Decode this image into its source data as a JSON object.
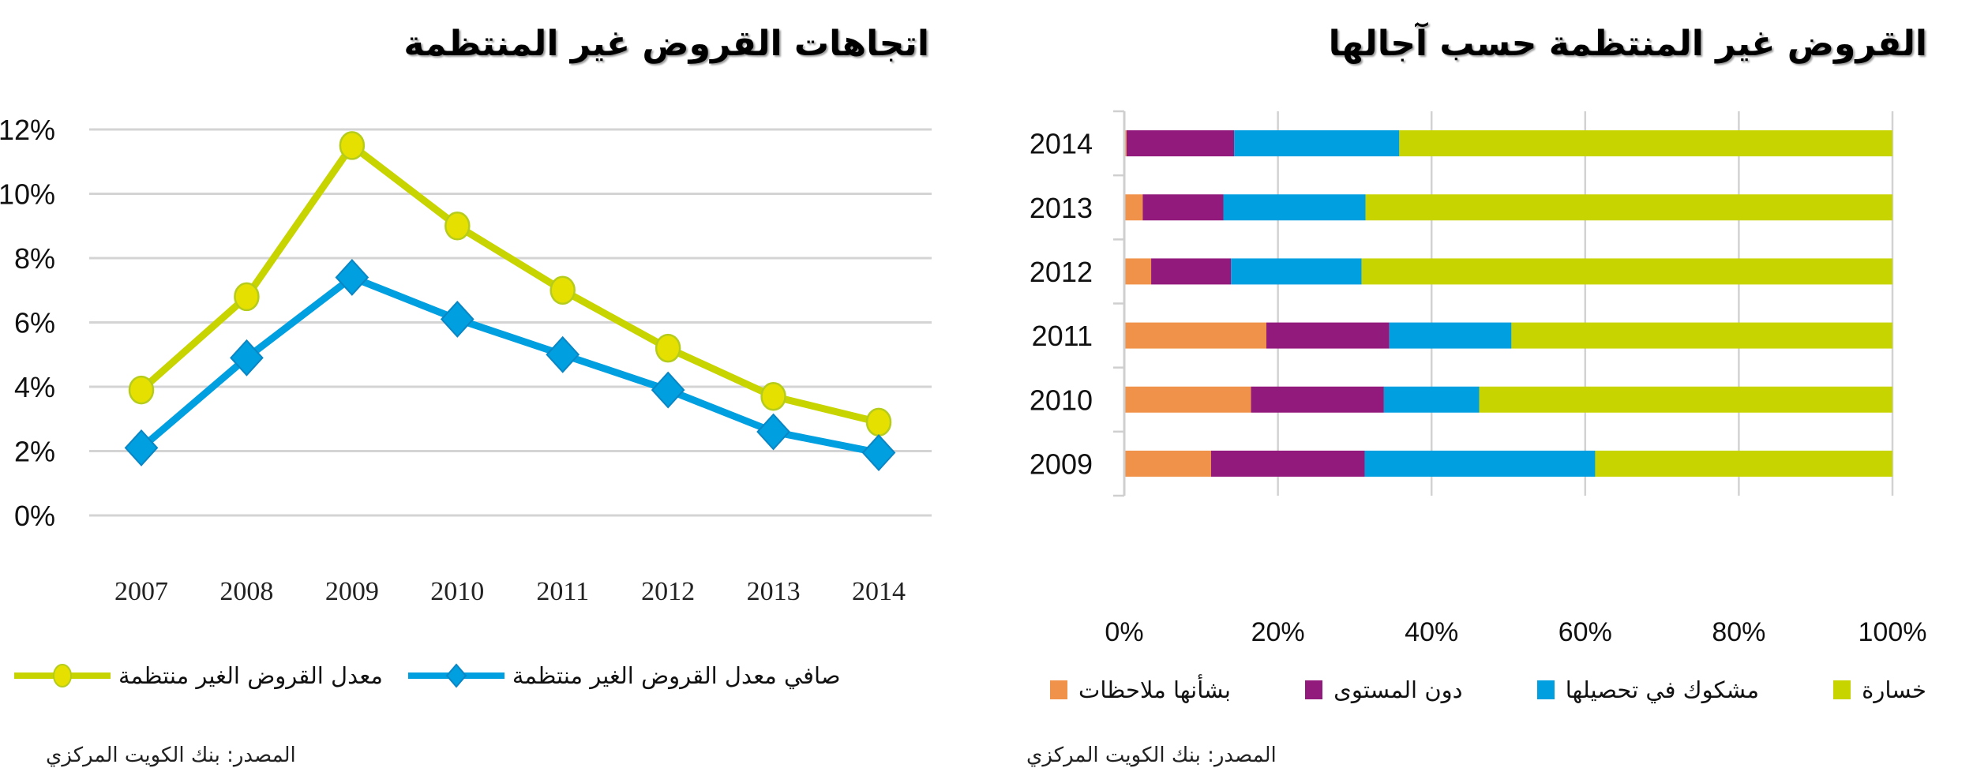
{
  "left_panel": {
    "title": "اتجاهات القروض غير المنتظمة",
    "source": "المصدر: بنك الكويت المركزي"
  },
  "right_panel": {
    "title": "القروض غير المنتظمة حسب آجالها",
    "source": "المصدر: بنك الكويت المركزي"
  },
  "chart_data": [
    {
      "type": "line",
      "title": "اتجاهات القروض غير المنتظمة",
      "x": [
        "2007",
        "2008",
        "2009",
        "2010",
        "2011",
        "2012",
        "2013",
        "2014"
      ],
      "ylim": [
        0,
        12
      ],
      "yticks": [
        0,
        2,
        4,
        6,
        8,
        10,
        12
      ],
      "ytick_labels": [
        "0%",
        "2%",
        "4%",
        "6%",
        "8%",
        "10%",
        "12%"
      ],
      "grid": true,
      "legend_position": "bottom",
      "series": [
        {
          "name": "صافي معدل القروض الغير منتظمة",
          "marker": "diamond",
          "color": "#009fe0",
          "values": [
            2.1,
            4.9,
            7.4,
            6.1,
            5.0,
            3.9,
            2.6,
            1.95
          ]
        },
        {
          "name": "معدل القروض الغير منتظمة",
          "marker": "circle",
          "color": "#c8d400",
          "marker_fill": "#e6e000",
          "values": [
            3.9,
            6.8,
            11.5,
            9.0,
            7.0,
            5.2,
            3.7,
            2.9
          ]
        }
      ]
    },
    {
      "type": "bar",
      "orientation": "horizontal",
      "stacked": "percent",
      "title": "القروض غير المنتظمة حسب آجالها",
      "categories": [
        "2014",
        "2013",
        "2012",
        "2011",
        "2010",
        "2009"
      ],
      "xlim": [
        0,
        100
      ],
      "xticks": [
        0,
        20,
        40,
        60,
        80,
        100
      ],
      "xtick_labels": [
        "0%",
        "20%",
        "40%",
        "60%",
        "80%",
        "100%"
      ],
      "grid": true,
      "legend_position": "bottom",
      "series": [
        {
          "name": "بشأنها ملاحظات",
          "color": "#f0924a",
          "values": [
            0.3,
            2.4,
            3.5,
            18.5,
            16.5,
            11.3
          ]
        },
        {
          "name": "دون المستوى",
          "color": "#921a7c",
          "values": [
            14.0,
            10.5,
            10.4,
            16.0,
            17.3,
            20.0
          ]
        },
        {
          "name": "مشكوك في تحصيلها",
          "color": "#009fe0",
          "values": [
            21.5,
            18.5,
            17.0,
            15.9,
            12.4,
            30.0
          ]
        },
        {
          "name": "خسارة",
          "color": "#c8d400",
          "values": [
            64.2,
            68.6,
            69.1,
            49.6,
            53.8,
            38.7
          ]
        }
      ]
    }
  ]
}
